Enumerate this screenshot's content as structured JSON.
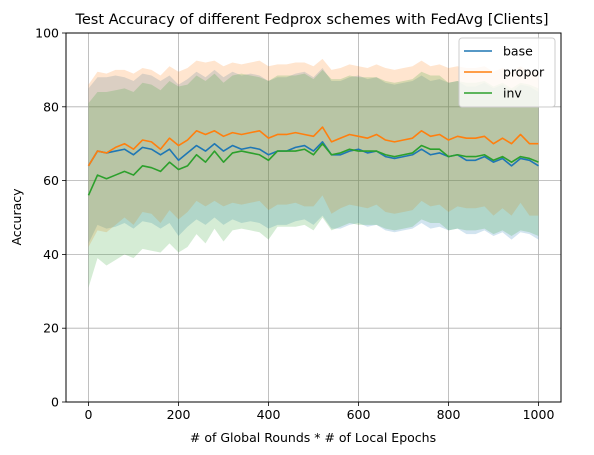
{
  "chart_data": {
    "type": "line",
    "title": "Test Accuracy of different Fedprox schemes with FedAvg [Clients]",
    "xlabel": "# of Global Rounds * # of Local Epochs",
    "ylabel": "Accuracy",
    "xlim": [
      -50,
      1050
    ],
    "ylim": [
      0,
      100
    ],
    "xticks": [
      0,
      200,
      400,
      600,
      800,
      1000
    ],
    "yticks": [
      0,
      20,
      40,
      60,
      80,
      100
    ],
    "grid": true,
    "legend_position": "top-right",
    "x": [
      0,
      20,
      40,
      60,
      80,
      100,
      120,
      140,
      160,
      180,
      200,
      220,
      240,
      260,
      280,
      300,
      320,
      340,
      360,
      380,
      400,
      420,
      440,
      460,
      480,
      500,
      520,
      540,
      560,
      580,
      600,
      620,
      640,
      660,
      680,
      700,
      720,
      740,
      760,
      780,
      800,
      820,
      840,
      860,
      880,
      900,
      920,
      940,
      960,
      980,
      1000
    ],
    "series": [
      {
        "name": "base",
        "color": "#1f77b4",
        "values": [
          64,
          68,
          67.5,
          68,
          68.5,
          67,
          69,
          68.5,
          67,
          68.5,
          65.5,
          67.5,
          69.5,
          68,
          70,
          68,
          69.5,
          68.5,
          69,
          68.5,
          67,
          68,
          68,
          69,
          69.5,
          68,
          70.5,
          67,
          67,
          68,
          68.5,
          67.5,
          68,
          66.5,
          66,
          66.5,
          67,
          68.5,
          67,
          67.5,
          66.5,
          67,
          65.5,
          65.5,
          66.5,
          65,
          66,
          64,
          66,
          65.5,
          64
        ],
        "upper": [
          85,
          88,
          88,
          88.5,
          88,
          87,
          89,
          88.5,
          87,
          88.5,
          86,
          87.5,
          89.5,
          88,
          90,
          88,
          89.5,
          88.5,
          89,
          88.5,
          87,
          88,
          88,
          89,
          89.5,
          88,
          90.5,
          87,
          87,
          88,
          88.5,
          87.5,
          88,
          86.5,
          86,
          86.5,
          87,
          88.5,
          87,
          87.5,
          86.5,
          87,
          85.5,
          85.5,
          86.5,
          85,
          86,
          84,
          86,
          85.5,
          84
        ],
        "lower": [
          43,
          48,
          47,
          47.5,
          48.5,
          47,
          49,
          48.5,
          47,
          48.5,
          45,
          47.5,
          49.5,
          48,
          50,
          48,
          49.5,
          48.5,
          49,
          48.5,
          47,
          48,
          48,
          49,
          49.5,
          48,
          50.5,
          47,
          47,
          48,
          48.5,
          47.5,
          48,
          46.5,
          46,
          46.5,
          47,
          48.5,
          47,
          47.5,
          46.5,
          47,
          45.5,
          45.5,
          46.5,
          45,
          46,
          44,
          46,
          45.5,
          44
        ]
      },
      {
        "name": "propor",
        "color": "#ff7f0e",
        "values": [
          64,
          68,
          67.5,
          69,
          70,
          68.5,
          71,
          70.5,
          68.5,
          71.5,
          69.5,
          71,
          73.5,
          72.5,
          73.5,
          72,
          73,
          72.5,
          73,
          73.5,
          71.5,
          72.5,
          72.5,
          73,
          72.5,
          72,
          74.5,
          70.5,
          71.5,
          72.5,
          72,
          71.5,
          72.5,
          71,
          70.5,
          71,
          71.5,
          73.5,
          72,
          72.5,
          71,
          72,
          71.5,
          71.5,
          72,
          70,
          71.5,
          70,
          72.5,
          70,
          70
        ],
        "upper": [
          86,
          89.5,
          89,
          90,
          90,
          89,
          90.5,
          90,
          88.5,
          91,
          89.5,
          90.5,
          92.5,
          92,
          92.5,
          91,
          92,
          91.5,
          92,
          92.5,
          91,
          91.5,
          91.5,
          92,
          92,
          91,
          93,
          90,
          90.5,
          91.5,
          91,
          90.5,
          91.5,
          90.5,
          90,
          90.5,
          91,
          92.5,
          91,
          91.5,
          90.5,
          91,
          90.5,
          90.5,
          91,
          89.5,
          90.5,
          89.5,
          91,
          89.5,
          89.5
        ],
        "lower": [
          42,
          46.5,
          46,
          48,
          50,
          48,
          51.5,
          51,
          48.5,
          52,
          49.5,
          51.5,
          54.5,
          53,
          54.5,
          53,
          54,
          53.5,
          54,
          54.5,
          52,
          53.5,
          53.5,
          54,
          53,
          53,
          56,
          51,
          52.5,
          53.5,
          53,
          52.5,
          53.5,
          51.5,
          51,
          51.5,
          52,
          54.5,
          53,
          53.5,
          51.5,
          53,
          52.5,
          52.5,
          53,
          50.5,
          52.5,
          50.5,
          54,
          50.5,
          50.5
        ]
      },
      {
        "name": "inv",
        "color": "#2ca02c",
        "values": [
          56,
          61.5,
          60.5,
          61.5,
          62.5,
          61.5,
          64,
          63.5,
          62.5,
          65,
          63,
          64,
          67,
          65,
          68,
          65,
          67.5,
          68,
          67.5,
          67,
          65.5,
          68,
          68,
          68,
          68.5,
          67,
          70,
          67,
          67.5,
          68.5,
          68,
          68,
          68,
          67,
          66.5,
          67,
          67.5,
          69.5,
          68.5,
          68.5,
          66.5,
          67,
          66.5,
          66.5,
          67,
          65.5,
          66.5,
          65,
          66.5,
          66,
          65
        ],
        "upper": [
          81,
          84,
          84,
          84.5,
          85,
          84,
          86.5,
          86,
          84.5,
          87,
          85.5,
          86,
          88.5,
          87,
          89,
          86.5,
          88.5,
          89,
          88.5,
          88,
          87,
          88.5,
          88.5,
          88.5,
          89,
          87.5,
          90,
          87.5,
          87.5,
          88.5,
          88,
          88,
          88,
          87,
          86.5,
          87,
          87.5,
          89.5,
          88.5,
          88.5,
          86.5,
          87,
          86.5,
          86.5,
          87,
          85.5,
          86.5,
          85,
          86.5,
          86,
          85
        ],
        "lower": [
          31,
          39,
          37,
          38.5,
          40,
          39,
          41.5,
          41,
          40.5,
          43,
          40.5,
          42,
          45.5,
          43,
          47,
          43.5,
          46.5,
          47,
          46.5,
          46,
          44,
          47.5,
          47.5,
          47.5,
          48,
          46.5,
          50,
          46.5,
          47.5,
          48.5,
          48,
          48,
          48,
          47,
          46.5,
          47,
          47.5,
          49.5,
          48.5,
          48.5,
          46.5,
          47,
          46.5,
          46.5,
          47,
          45.5,
          46.5,
          45,
          46.5,
          46,
          45
        ]
      }
    ]
  }
}
